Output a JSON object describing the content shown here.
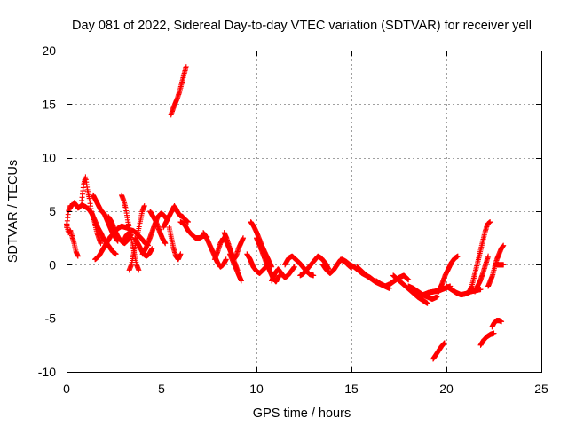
{
  "chart_data": {
    "type": "scatter",
    "title": "Day 081 of 2022, Sidereal Day-to-day VTEC variation (SDTVAR) for receiver yell",
    "xlabel": "GPS time / hours",
    "ylabel": "SDTVAR / TECUs",
    "xlim": [
      0,
      25
    ],
    "ylim": [
      -10,
      20
    ],
    "xticks": [
      "0",
      "5",
      "10",
      "15",
      "20",
      "25"
    ],
    "yticks": [
      "-10",
      "-5",
      "0",
      "5",
      "10",
      "15",
      "20"
    ],
    "grid": true,
    "marker": "+",
    "colors": {
      "series": "#ff0000",
      "grid": "#a0a0a0",
      "axis": "#000000"
    },
    "series": [
      {
        "name": "SDTVAR",
        "tracks": [
          {
            "start": 0.0,
            "end": 1.0,
            "values": [
              3.5,
              5.0,
              5.5,
              5.5,
              5.8,
              5.6,
              5.3,
              5.4,
              5.6,
              5.5,
              5.4
            ]
          },
          {
            "start": 0.0,
            "end": 0.6,
            "values": [
              3.8,
              3.0,
              3.2,
              2.6,
              2.0,
              1.2,
              0.8
            ]
          },
          {
            "start": 0.8,
            "end": 1.8,
            "values": [
              6.0,
              7.5,
              8.2,
              7.0,
              6.2,
              5.0,
              4.5,
              3.8,
              3.0,
              2.5,
              2.0
            ]
          },
          {
            "start": 1.0,
            "end": 2.6,
            "values": [
              5.4,
              5.2,
              4.8,
              4.2,
              3.5,
              3.0,
              2.4,
              2.0,
              1.6,
              1.2,
              1.0
            ]
          },
          {
            "start": 1.4,
            "end": 2.7,
            "values": [
              6.5,
              6.0,
              5.5,
              5.0,
              4.8,
              4.2,
              3.6,
              3.0,
              2.6,
              2.2
            ]
          },
          {
            "start": 1.5,
            "end": 3.3,
            "values": [
              0.5,
              0.8,
              1.4,
              2.0,
              2.6,
              3.0,
              3.4,
              3.6,
              3.5,
              3.4
            ]
          },
          {
            "start": 2.2,
            "end": 3.4,
            "values": [
              4.5,
              4.0,
              3.2,
              2.6,
              2.2,
              2.0,
              2.3,
              2.8
            ]
          },
          {
            "start": 2.9,
            "end": 3.8,
            "values": [
              6.5,
              6.0,
              5.2,
              4.0,
              3.0,
              2.0,
              1.0,
              0.0,
              -0.5
            ]
          },
          {
            "start": 3.0,
            "end": 4.3,
            "values": [
              2.2,
              2.8,
              3.0,
              3.2,
              3.0,
              2.7,
              2.4,
              2.0,
              1.8
            ]
          },
          {
            "start": 3.3,
            "end": 4.1,
            "values": [
              -0.5,
              0.0,
              1.0,
              2.0,
              3.0,
              4.0,
              5.0,
              5.5
            ]
          },
          {
            "start": 3.6,
            "end": 4.5,
            "values": [
              2.5,
              2.0,
              1.5,
              1.0,
              0.8,
              1.0,
              1.5
            ]
          },
          {
            "start": 4.0,
            "end": 5.3,
            "values": [
              1.0,
              1.5,
              2.2,
              3.0,
              3.8,
              4.5,
              4.8,
              4.6,
              4.2
            ]
          },
          {
            "start": 4.4,
            "end": 5.2,
            "values": [
              5.0,
              4.5,
              4.0,
              3.2,
              2.5,
              2.0
            ]
          },
          {
            "start": 5.1,
            "end": 6.4,
            "values": [
              3.5,
              4.0,
              4.5,
              5.0,
              5.5,
              5.0,
              4.6,
              4.5,
              4.2,
              4.0
            ]
          },
          {
            "start": 5.4,
            "end": 6.0,
            "values": [
              3.5,
              2.5,
              1.5,
              0.8,
              0.5,
              1.0
            ]
          },
          {
            "start": 6.0,
            "end": 7.4,
            "values": [
              4.0,
              3.8,
              3.2,
              2.8,
              2.5,
              2.5,
              2.7,
              2.6
            ]
          },
          {
            "start": 5.5,
            "end": 6.3,
            "values": [
              14.0,
              14.6,
              15.1,
              15.6,
              16.2,
              17.0,
              17.8,
              18.5
            ]
          },
          {
            "start": 7.2,
            "end": 8.4,
            "values": [
              3.0,
              2.6,
              2.0,
              1.4,
              0.8,
              0.2,
              -0.2,
              0.0,
              0.5
            ]
          },
          {
            "start": 7.8,
            "end": 9.0,
            "values": [
              0.5,
              1.2,
              2.0,
              2.5,
              2.2,
              1.6,
              1.0,
              0.2,
              -0.5
            ]
          },
          {
            "start": 8.3,
            "end": 9.3,
            "values": [
              3.0,
              2.5,
              1.8,
              1.0,
              0.5,
              0.8,
              1.5,
              2.0,
              2.5
            ]
          },
          {
            "start": 8.6,
            "end": 9.2,
            "values": [
              1.0,
              0.5,
              0.0,
              -0.5,
              -1.0,
              -1.5
            ]
          },
          {
            "start": 9.7,
            "end": 10.8,
            "values": [
              4.0,
              3.6,
              3.0,
              2.3,
              1.6,
              1.0,
              0.4,
              -0.2
            ]
          },
          {
            "start": 9.5,
            "end": 10.5,
            "values": [
              1.0,
              0.5,
              -0.2,
              -0.6,
              -0.8,
              -0.5,
              -0.2
            ]
          },
          {
            "start": 10.0,
            "end": 11.2,
            "values": [
              2.5,
              1.8,
              1.0,
              0.2,
              -0.5,
              -1.2,
              -1.6,
              -1.0
            ]
          },
          {
            "start": 10.8,
            "end": 12.0,
            "values": [
              -1.5,
              -0.8,
              -0.4,
              -0.8,
              -1.2,
              -1.0,
              -0.6,
              -0.2
            ]
          },
          {
            "start": 11.5,
            "end": 13.0,
            "values": [
              0.0,
              0.6,
              0.8,
              0.5,
              0.2,
              -0.2,
              -0.6,
              -0.9,
              -1.0
            ]
          },
          {
            "start": 12.3,
            "end": 13.8,
            "values": [
              -1.0,
              -0.8,
              -0.4,
              0.0,
              0.4,
              0.8,
              0.6,
              0.2,
              -0.4
            ]
          },
          {
            "start": 13.5,
            "end": 15.0,
            "values": [
              0.0,
              -0.5,
              -0.8,
              -0.5,
              0.0,
              0.5,
              0.3,
              0.0,
              -0.3
            ]
          },
          {
            "start": 14.5,
            "end": 16.2,
            "values": [
              0.5,
              0.3,
              0.0,
              -0.2,
              -0.5,
              -0.8,
              -1.0,
              -1.2,
              -1.5
            ]
          },
          {
            "start": 15.3,
            "end": 17.0,
            "values": [
              -0.2,
              -0.6,
              -1.0,
              -1.3,
              -1.6,
              -1.8,
              -2.0,
              -2.2
            ]
          },
          {
            "start": 16.3,
            "end": 18.0,
            "values": [
              -1.5,
              -1.8,
              -2.0,
              -1.8,
              -1.5,
              -1.2,
              -1.0,
              -1.4
            ]
          },
          {
            "start": 17.2,
            "end": 19.0,
            "values": [
              -1.0,
              -1.4,
              -1.8,
              -2.2,
              -2.6,
              -3.0,
              -3.3,
              -3.6
            ]
          },
          {
            "start": 18.0,
            "end": 19.5,
            "values": [
              -2.0,
              -2.2,
              -2.5,
              -2.8,
              -3.0,
              -3.2,
              -3.0
            ]
          },
          {
            "start": 18.5,
            "end": 20.2,
            "values": [
              -3.0,
              -2.8,
              -2.6,
              -2.5,
              -2.4,
              -2.2,
              -2.0
            ]
          },
          {
            "start": 19.3,
            "end": 19.9,
            "values": [
              -8.8,
              -8.4,
              -8.0,
              -7.6,
              -7.3
            ]
          },
          {
            "start": 19.6,
            "end": 20.6,
            "values": [
              -2.5,
              -1.8,
              -1.0,
              -0.4,
              0.2,
              0.6,
              0.8
            ]
          },
          {
            "start": 20.0,
            "end": 21.8,
            "values": [
              -2.0,
              -2.3,
              -2.6,
              -2.8,
              -2.7,
              -2.5,
              -2.4,
              -2.3
            ]
          },
          {
            "start": 21.2,
            "end": 22.3,
            "values": [
              -2.5,
              -2.0,
              -1.0,
              0.0,
              1.0,
              2.0,
              3.0,
              3.8,
              4.0
            ]
          },
          {
            "start": 21.5,
            "end": 22.2,
            "values": [
              -2.5,
              -2.0,
              -1.5,
              -0.8,
              0.0,
              0.8
            ]
          },
          {
            "start": 21.8,
            "end": 22.5,
            "values": [
              -7.5,
              -7.0,
              -6.7,
              -6.5,
              -6.4
            ]
          },
          {
            "start": 22.2,
            "end": 23.0,
            "values": [
              -2.0,
              -1.5,
              -1.0,
              -0.2,
              0.5,
              1.0,
              1.5,
              1.8
            ]
          },
          {
            "start": 22.4,
            "end": 22.9,
            "values": [
              -5.8,
              -5.4,
              -5.2,
              -5.2,
              -5.3
            ]
          },
          {
            "start": 22.6,
            "end": 23.0,
            "values": [
              0.0,
              0.0,
              0.0
            ]
          }
        ]
      }
    ]
  }
}
